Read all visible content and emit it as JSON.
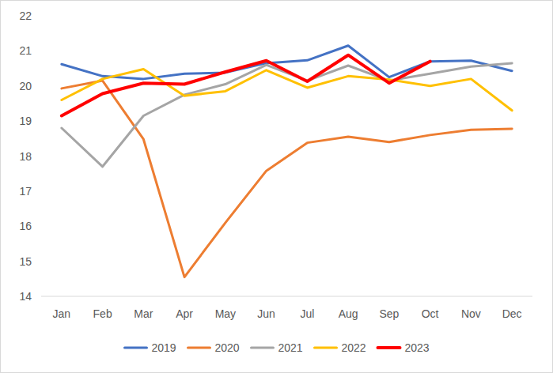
{
  "chart_data": {
    "type": "line",
    "categories": [
      "Jan",
      "Feb",
      "Mar",
      "Apr",
      "May",
      "Jun",
      "Jul",
      "Aug",
      "Sep",
      "Oct",
      "Nov",
      "Dec"
    ],
    "series": [
      {
        "name": "2019",
        "color": "#4472c4",
        "values": [
          20.62,
          20.28,
          20.2,
          20.35,
          20.38,
          20.65,
          20.73,
          21.15,
          20.25,
          20.7,
          20.72,
          20.43
        ]
      },
      {
        "name": "2020",
        "color": "#ed7d31",
        "values": [
          19.93,
          20.15,
          18.48,
          14.55,
          16.1,
          17.58,
          18.38,
          18.55,
          18.4,
          18.6,
          18.75,
          18.78
        ]
      },
      {
        "name": "2021",
        "color": "#a5a5a5",
        "values": [
          18.8,
          17.7,
          19.15,
          19.75,
          20.05,
          20.6,
          20.15,
          20.58,
          20.15,
          20.35,
          20.55,
          20.65
        ]
      },
      {
        "name": "2022",
        "color": "#ffc000",
        "values": [
          19.6,
          20.2,
          20.48,
          19.72,
          19.85,
          20.45,
          19.95,
          20.28,
          20.18,
          20.0,
          20.2,
          19.3
        ]
      },
      {
        "name": "2023",
        "color": "#ff0000",
        "values": [
          19.15,
          19.78,
          20.08,
          20.05,
          20.4,
          20.72,
          20.13,
          20.88,
          20.08,
          20.7,
          null,
          null
        ]
      }
    ],
    "ylim": [
      14,
      22
    ],
    "yticks": [
      14,
      15,
      16,
      17,
      18,
      19,
      20,
      21,
      22
    ],
    "grid": false,
    "legend": "bottom"
  }
}
